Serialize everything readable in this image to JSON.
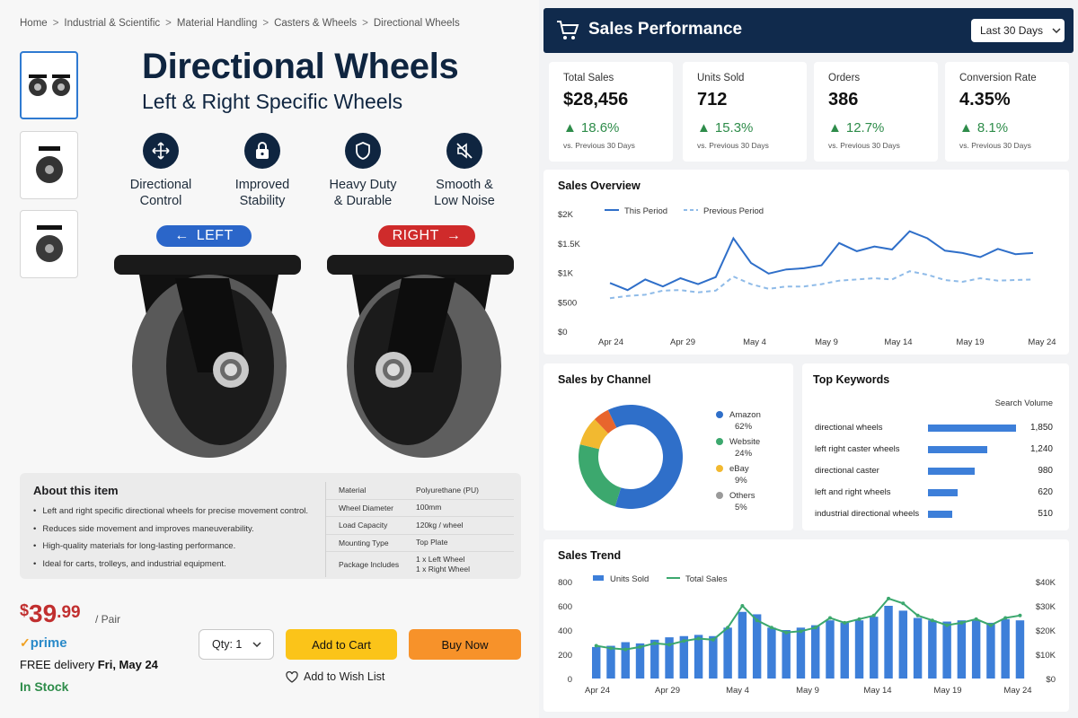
{
  "breadcrumb": [
    "Home",
    "Industrial & Scientific",
    "Material Handling",
    "Casters & Wheels",
    "Directional Wheels"
  ],
  "product": {
    "title": "Directional Wheels",
    "subtitle": "Left & Right Specific Wheels",
    "features": [
      {
        "icon": "arrows-move-icon",
        "label1": "Directional",
        "label2": "Control"
      },
      {
        "icon": "lock-icon",
        "label1": "Improved",
        "label2": "Stability"
      },
      {
        "icon": "shield-icon",
        "label1": "Heavy Duty",
        "label2": "& Durable"
      },
      {
        "icon": "mute-icon",
        "label1": "Smooth &",
        "label2": "Low Noise"
      }
    ],
    "left_label": "LEFT",
    "right_label": "RIGHT",
    "about_title": "About this item",
    "about_items": [
      "Left and right specific directional wheels for precise movement control.",
      "Reduces side movement and improves maneuverability.",
      "High-quality materials for long-lasting performance.",
      "Ideal for carts, trolleys, and industrial equipment."
    ],
    "specs": [
      {
        "k": "Material",
        "v": "Polyurethane (PU)"
      },
      {
        "k": "Wheel Diameter",
        "v": "100mm"
      },
      {
        "k": "Load Capacity",
        "v": "120kg / wheel"
      },
      {
        "k": "Mounting Type",
        "v": "Top Plate"
      },
      {
        "k": "Package Includes",
        "v": "1 x Left Wheel",
        "v2": "1 x Right Wheel"
      }
    ],
    "price_currency": "$",
    "price_whole": "39",
    "price_cents": ".99",
    "price_unit": "/ Pair",
    "prime": "prime",
    "delivery_prefix": "FREE delivery",
    "delivery_date": "Fri, May 24",
    "stock": "In Stock",
    "qty_label": "Qty: 1",
    "cart_label": "Add to Cart",
    "buy_label": "Buy Now",
    "wish_label": "Add to Wish List"
  },
  "dashboard": {
    "title": "Sales Performance",
    "range": "Last 30 Days",
    "kpis": [
      {
        "name": "Total Sales",
        "value": "$28,456",
        "change": "18.6%",
        "period": "vs. Previous 30 Days"
      },
      {
        "name": "Units Sold",
        "value": "712",
        "change": "15.3%",
        "period": "vs. Previous 30 Days"
      },
      {
        "name": "Orders",
        "value": "386",
        "change": "12.7%",
        "period": "vs. Previous 30 Days"
      },
      {
        "name": "Conversion Rate",
        "value": "4.35%",
        "change": "8.1%",
        "period": "vs. Previous 30 Days"
      }
    ],
    "overview_title": "Sales Overview",
    "channel_title": "Sales by Channel",
    "keywords_title": "Top Keywords",
    "keywords_header": "Search Volume",
    "keywords": [
      {
        "k": "directional wheels",
        "v": 1850,
        "label": "1,850"
      },
      {
        "k": "left right caster wheels",
        "v": 1240,
        "label": "1,240"
      },
      {
        "k": "directional caster",
        "v": 980,
        "label": "980"
      },
      {
        "k": "left and right wheels",
        "v": 620,
        "label": "620"
      },
      {
        "k": "industrial directional wheels",
        "v": 510,
        "label": "510"
      }
    ],
    "trend_title": "Sales Trend"
  },
  "colors": {
    "navy": "#102a4c",
    "accent": "#2f6fc9",
    "green": "#2e8c4a",
    "prev": "#8fbbe8"
  },
  "chart_data": [
    {
      "type": "line",
      "title": "Sales Overview",
      "x_ticks": [
        "Apr 24",
        "Apr 29",
        "May 4",
        "May 9",
        "May 14",
        "May 19",
        "May 24"
      ],
      "y_ticks": [
        "$0",
        "$500",
        "$1K",
        "$1.5K",
        "$2K"
      ],
      "ylim": [
        0,
        2000
      ],
      "legend": "top",
      "series": [
        {
          "name": "This Period",
          "color": "#2f6fc9",
          "values": [
            820,
            700,
            880,
            760,
            900,
            800,
            920,
            1580,
            1160,
            980,
            1050,
            1070,
            1120,
            1500,
            1360,
            1440,
            1390,
            1700,
            1580,
            1370,
            1330,
            1260,
            1400,
            1310,
            1330
          ]
        },
        {
          "name": "Previous Period",
          "color": "#8fbbe8",
          "dashed": true,
          "values": [
            560,
            600,
            620,
            690,
            700,
            660,
            690,
            930,
            800,
            720,
            760,
            760,
            800,
            860,
            880,
            900,
            880,
            1020,
            960,
            870,
            840,
            900,
            860,
            870,
            880
          ]
        }
      ]
    },
    {
      "type": "pie",
      "title": "Sales by Channel",
      "legend": "right",
      "slices": [
        {
          "name": "Amazon",
          "value": 62,
          "label": "62%",
          "color": "#2f6fc9"
        },
        {
          "name": "Website",
          "value": 24,
          "label": "24%",
          "color": "#3ca86e"
        },
        {
          "name": "eBay",
          "value": 9,
          "label": "9%",
          "color": "#f2b930"
        },
        {
          "name": "Others",
          "value": 5,
          "label": "5%",
          "color": "#e8652d"
        }
      ]
    },
    {
      "type": "bar",
      "title": "Sales Trend",
      "x_ticks": [
        "Apr 24",
        "Apr 29",
        "May 4",
        "May 9",
        "May 14",
        "May 19",
        "May 24"
      ],
      "y_ticks_left": [
        "0",
        "200",
        "400",
        "600",
        "800"
      ],
      "y_ticks_right": [
        "$0",
        "$10K",
        "$20K",
        "$30K",
        "$40K"
      ],
      "ylim_left": [
        0,
        800
      ],
      "ylim_right": [
        0,
        40000
      ],
      "legend": "top",
      "series": [
        {
          "name": "Units Sold",
          "axis": "left",
          "color": "#3d7fd9",
          "values": [
            260,
            270,
            300,
            290,
            320,
            340,
            350,
            360,
            350,
            420,
            550,
            530,
            420,
            400,
            420,
            440,
            480,
            460,
            480,
            510,
            600,
            560,
            500,
            480,
            470,
            480,
            480,
            460,
            490,
            480
          ]
        },
        {
          "name": "Total Sales",
          "axis": "right",
          "color": "#3ca86e",
          "values": [
            13500,
            12500,
            12000,
            13000,
            14500,
            14000,
            15500,
            16500,
            16000,
            21000,
            30000,
            24000,
            21000,
            19000,
            19500,
            21000,
            25000,
            23000,
            24500,
            26000,
            33000,
            31000,
            26000,
            24000,
            22000,
            23000,
            24500,
            22000,
            25000,
            26000
          ]
        }
      ]
    }
  ]
}
